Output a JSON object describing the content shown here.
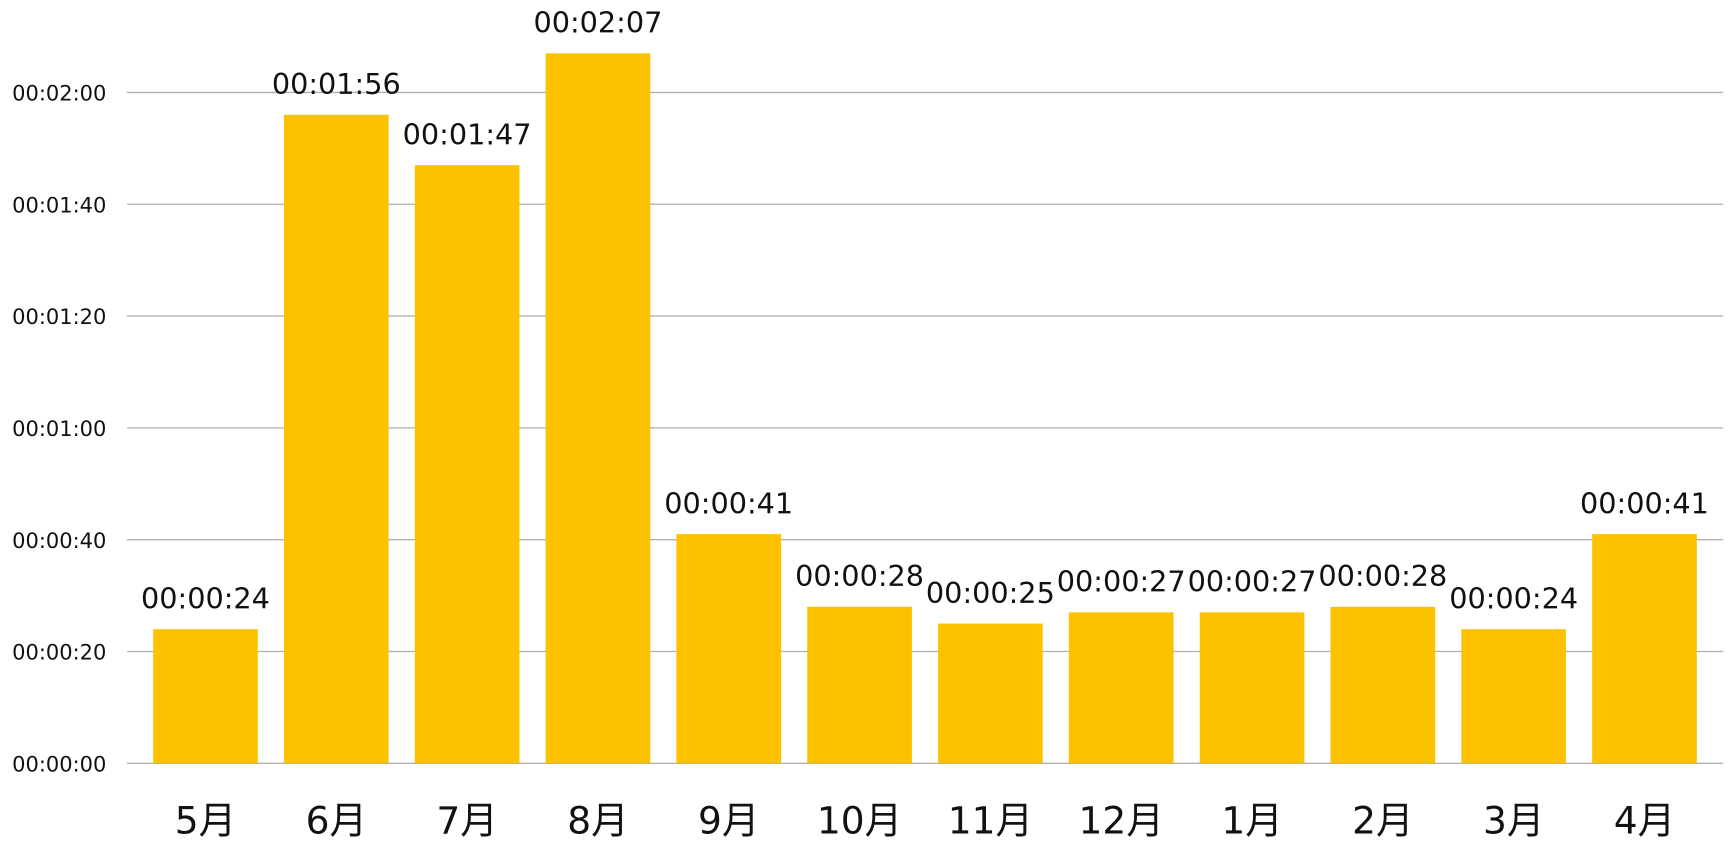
{
  "chart_data": {
    "type": "bar",
    "categories": [
      "5月",
      "6月",
      "7月",
      "8月",
      "9月",
      "10月",
      "11月",
      "12月",
      "1月",
      "2月",
      "3月",
      "4月"
    ],
    "values": [
      24,
      116,
      107,
      127,
      41,
      28,
      25,
      27,
      27,
      28,
      24,
      41
    ],
    "value_labels": [
      "00:00:24",
      "00:01:56",
      "00:01:47",
      "00:02:07",
      "00:00:41",
      "00:00:28",
      "00:00:25",
      "00:00:27",
      "00:00:27",
      "00:00:28",
      "00:00:24",
      "00:00:41"
    ],
    "color": "#fcc200",
    "ylim": [
      0,
      130
    ],
    "yticks": [
      {
        "value": 0,
        "label": "00:00:00"
      },
      {
        "value": 20,
        "label": "00:00:20"
      },
      {
        "value": 40,
        "label": "00:00:40"
      },
      {
        "value": 60,
        "label": "00:01:00"
      },
      {
        "value": 80,
        "label": "00:01:20"
      },
      {
        "value": 100,
        "label": "00:01:40"
      },
      {
        "value": 120,
        "label": "00:02:00"
      }
    ],
    "grid": true
  }
}
